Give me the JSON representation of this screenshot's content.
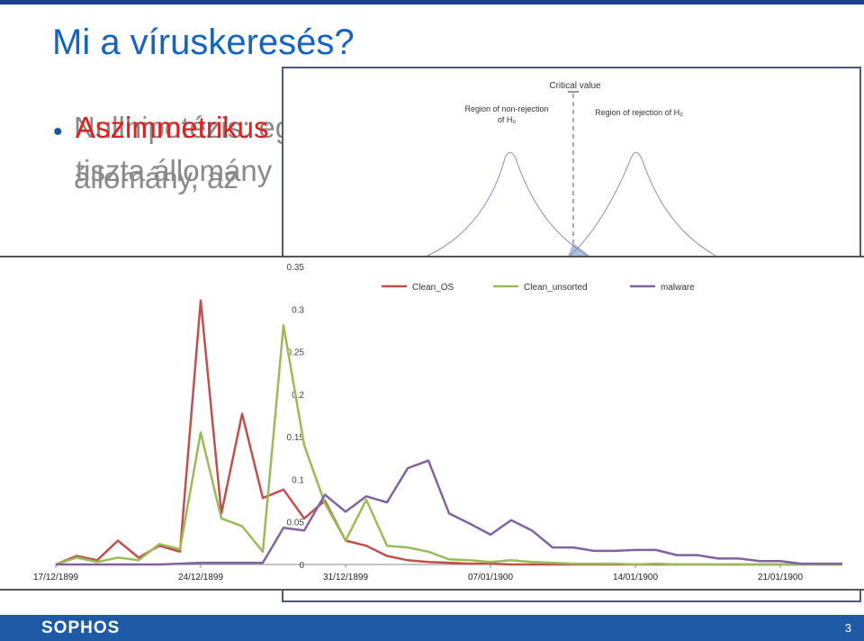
{
  "slide": {
    "title": "Mi a víruskeresés?",
    "bullet_layer_1_line1": "Nullhipotézis: egy",
    "bullet_layer_1_line2": "állomány, az",
    "bullet_layer_2_line1": "Aszimmetrikus",
    "bullet_layer_2_line2": "tiszta állomány",
    "brand": "SOPHOS",
    "page_number": "3"
  },
  "hypothesis_figure": {
    "critical_value_label": "Critical value",
    "left_region_line1": "Region of non-rejection",
    "left_region_line2": "of H₀",
    "right_region_label": "Region of rejection of H₀"
  },
  "colors": {
    "clean_os": "#c0504d",
    "clean_unsorted": "#9bbb59",
    "malware": "#8064a2",
    "title": "#1565c0",
    "bar": "#1f5aa6"
  },
  "chart_data": {
    "type": "line",
    "x": [
      "17/12/1899",
      "18/12/1899",
      "19/12/1899",
      "20/12/1899",
      "21/12/1899",
      "22/12/1899",
      "23/12/1899",
      "24/12/1899",
      "25/12/1899",
      "26/12/1899",
      "27/12/1899",
      "28/12/1899",
      "29/12/1899",
      "30/12/1899",
      "31/12/1899",
      "01/01/1900",
      "02/01/1900",
      "03/01/1900",
      "04/01/1900",
      "05/01/1900",
      "06/01/1900",
      "07/01/1900",
      "08/01/1900",
      "09/01/1900",
      "10/01/1900",
      "11/01/1900",
      "12/01/1900",
      "13/01/1900",
      "14/01/1900",
      "15/01/1900",
      "16/01/1900",
      "17/01/1900",
      "18/01/1900",
      "19/01/1900",
      "20/01/1900",
      "21/01/1900",
      "22/01/1900",
      "23/01/1900",
      "24/01/1900"
    ],
    "x_tick_labels": [
      "17/12/1899",
      "24/12/1899",
      "31/12/1899",
      "07/01/1900",
      "14/01/1900",
      "21/01/1900"
    ],
    "y_tick_labels": [
      "0",
      "0.05",
      "0.1",
      "0.15",
      "0.2",
      "0.25",
      "0.3",
      "0.35"
    ],
    "ylim": [
      0,
      0.35
    ],
    "series": [
      {
        "name": "Clean_OS",
        "values": [
          0,
          0.01,
          0.005,
          0.028,
          0.008,
          0.022,
          0.015,
          0.31,
          0.06,
          0.177,
          0.078,
          0.088,
          0.054,
          0.075,
          0.028,
          0.022,
          0.01,
          0.005,
          0.003,
          0.002,
          0.001,
          0.001,
          0,
          0,
          0,
          0,
          0,
          0,
          0,
          0,
          0,
          0,
          0,
          0,
          0,
          0,
          0,
          0,
          0
        ]
      },
      {
        "name": "Clean_unsorted",
        "values": [
          0,
          0.008,
          0.003,
          0.008,
          0.005,
          0.024,
          0.018,
          0.155,
          0.054,
          0.045,
          0.015,
          0.281,
          0.14,
          0.072,
          0.028,
          0.076,
          0.022,
          0.02,
          0.015,
          0.006,
          0.005,
          0.003,
          0.005,
          0.003,
          0.002,
          0.001,
          0.001,
          0.001,
          0,
          0.001,
          0,
          0,
          0,
          0,
          0,
          0,
          0,
          0,
          0
        ]
      },
      {
        "name": "malware",
        "values": [
          0,
          0,
          0,
          0,
          0,
          0,
          0.001,
          0.002,
          0.002,
          0.002,
          0.002,
          0.043,
          0.04,
          0.082,
          0.062,
          0.08,
          0.073,
          0.113,
          0.122,
          0.06,
          0.048,
          0.035,
          0.052,
          0.04,
          0.02,
          0.02,
          0.016,
          0.016,
          0.017,
          0.017,
          0.011,
          0.011,
          0.007,
          0.007,
          0.004,
          0.004,
          0.001,
          0.001,
          0.001
        ]
      }
    ],
    "legend": [
      "Clean_OS",
      "Clean_unsorted",
      "malware"
    ],
    "legend_position": "top",
    "title": "",
    "xlabel": "",
    "ylabel": ""
  }
}
